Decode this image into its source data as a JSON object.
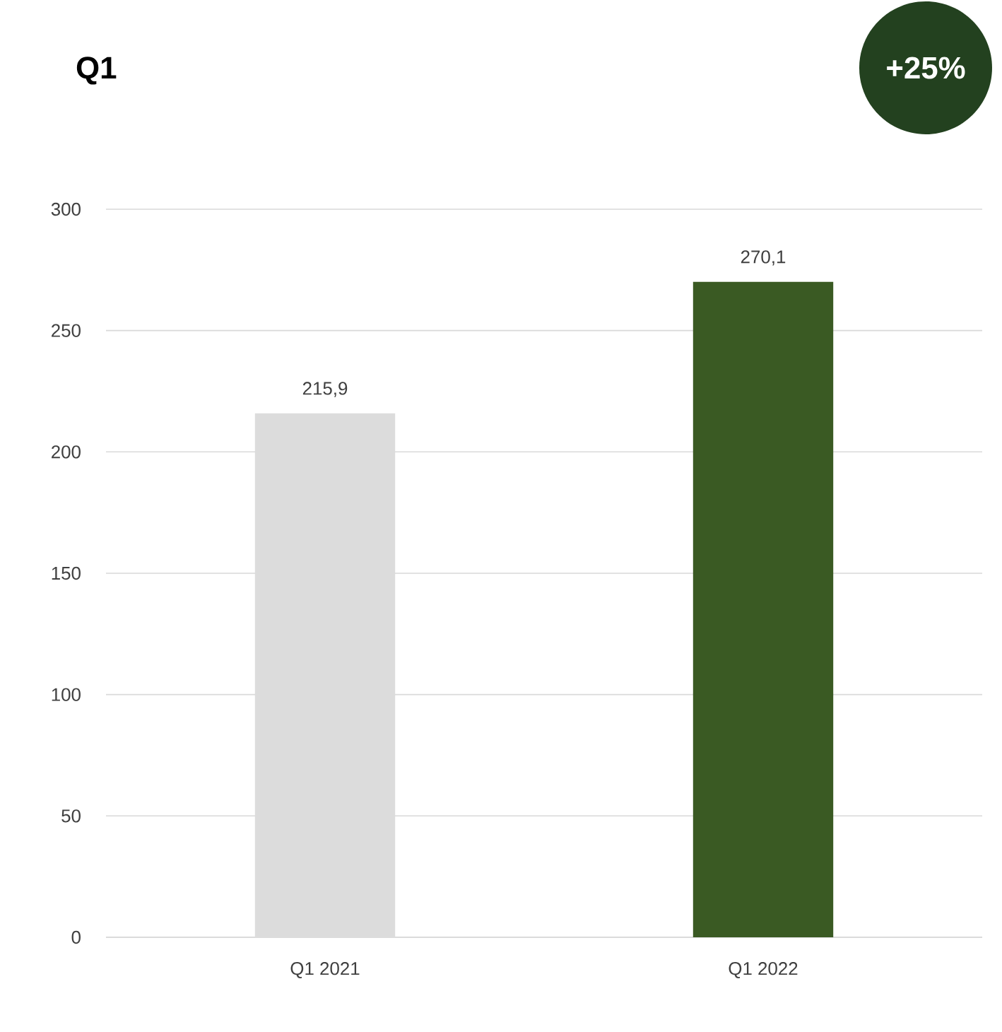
{
  "chart_data": {
    "type": "bar",
    "title": "Q1",
    "categories": [
      "Q1 2021",
      "Q1 2022"
    ],
    "values": [
      215.9,
      270.1
    ],
    "colors": [
      "#dcdcdc",
      "#3a5a23"
    ],
    "value_labels": [
      "215,9",
      "270,1"
    ],
    "annotations": [
      "+25%"
    ],
    "ylim": [
      0,
      300
    ],
    "yticks": [
      0,
      50,
      100,
      150,
      200,
      250,
      300
    ],
    "grid": "y"
  }
}
